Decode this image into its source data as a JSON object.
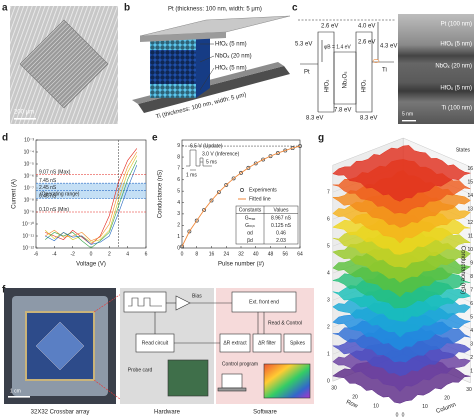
{
  "panel_labels": [
    "a",
    "b",
    "c",
    "d",
    "e",
    "f",
    "g"
  ],
  "a": {
    "scale_bar": "200 μm"
  },
  "b": {
    "layers": [
      "Pt (thickness: 100 nm, width: 5 μm)",
      "HfOₓ (5 nm)",
      "NbOₓ (20 nm)",
      "HfOₓ (5 nm)",
      "Ti (thickness: 100 nm, width: 5 μm)"
    ]
  },
  "c": {
    "band_labels": [
      "2.6 eV",
      "4.0 eV",
      "5.3 eV",
      "φB = 1.4 eV",
      "2.6 eV",
      "4.3 eV",
      "8.3 eV",
      "7.8 eV",
      "8.3 eV",
      "Pt",
      "Ti",
      "HfO₂",
      "Nb₂O₅",
      "HfO₂"
    ],
    "tem_labels": [
      "Pt (100 nm)",
      "HfOₓ (5 nm)",
      "NbOₓ (20 nm)",
      "HfOₓ (5 nm)",
      "Ti (100 nm)"
    ],
    "scale_bar": "5 nm"
  },
  "chart_data": [
    {
      "type": "line",
      "xlabel": "Voltage (V)",
      "ylabel": "Current (A)",
      "log_y": true,
      "x": [
        -5,
        -4,
        -3,
        -2,
        -1,
        0,
        1,
        2,
        3,
        4,
        5
      ],
      "series": [
        {
          "color": "#e2231a",
          "values": [
            2e-11,
            1e-11,
            5e-12,
            3e-11,
            8e-12,
            2e-12,
            1e-11,
            5e-10,
            3e-07,
            2e-05,
            0.0002
          ]
        },
        {
          "color": "#f28c28",
          "values": [
            1e-11,
            3e-11,
            8e-12,
            1e-11,
            2e-11,
            4e-12,
            8e-12,
            1e-10,
            5e-08,
            6e-06,
            0.0001
          ]
        },
        {
          "color": "#d9c21a",
          "values": [
            3e-11,
            6e-12,
            2e-11,
            5e-12,
            1e-11,
            3e-12,
            5e-12,
            3e-11,
            1e-08,
            2e-06,
            5e-05
          ]
        },
        {
          "color": "#3aa64a",
          "values": [
            5e-12,
            2e-11,
            1e-11,
            2e-11,
            4e-12,
            1e-12,
            4e-12,
            2e-11,
            3e-09,
            5e-07,
            2e-05
          ]
        },
        {
          "color": "#2b6cc4",
          "values": [
            1e-11,
            4e-12,
            2e-11,
            8e-12,
            1e-11,
            2e-12,
            3e-12,
            1e-11,
            8e-10,
            1e-07,
            8e-06
          ]
        }
      ],
      "xlim": [
        -6,
        6
      ],
      "xticks": [
        -6,
        -4,
        -2,
        0,
        2,
        4,
        6
      ],
      "ylim": [
        1e-12,
        0.001
      ],
      "yticks": [
        {
          "value": 1e-12,
          "label": "10⁻¹²"
        },
        {
          "value": 1e-11,
          "label": "10⁻¹¹"
        },
        {
          "value": 1e-10,
          "label": "10⁻¹⁰"
        },
        {
          "value": 1e-09,
          "label": "10⁻⁹"
        },
        {
          "value": 1e-08,
          "label": "10⁻⁸"
        },
        {
          "value": 1e-07,
          "label": "10⁻⁷"
        },
        {
          "value": 1e-06,
          "label": "10⁻⁶"
        },
        {
          "value": 1e-05,
          "label": "10⁻⁵"
        },
        {
          "value": 0.0001,
          "label": "10⁻⁴"
        },
        {
          "value": 0.001,
          "label": "10⁻³"
        }
      ],
      "levels": [
        {
          "label": "9.07 nS (Max)",
          "current": 1.3e-06,
          "color": "#e2231a"
        },
        {
          "label": "7.45 nS",
          "current": 2.5e-07,
          "color": "#2b6cc4"
        },
        {
          "label": "2.45 nS",
          "current": 6.3e-08,
          "color": "#2b6cc4"
        },
        {
          "label": "0.45 nS",
          "current": 1.3e-08,
          "color": "#2b6cc4"
        },
        {
          "label": "0.10 nS (Min)",
          "current": 1e-09,
          "color": "#e2231a"
        }
      ],
      "range_label": "(Operating range)",
      "read_voltage": 3
    },
    {
      "type": "line",
      "xlabel": "Pulse number (#)",
      "ylabel": "Conductance (nS)",
      "x": [
        0,
        4,
        8,
        12,
        16,
        20,
        24,
        28,
        32,
        36,
        40,
        44,
        48,
        52,
        56,
        60,
        64
      ],
      "series": [
        {
          "name": "Experiments",
          "color": "#444444",
          "marker": true,
          "values": [
            0.13,
            1.46,
            2.41,
            3.35,
            4.18,
            4.91,
            5.55,
            6.12,
            6.61,
            7.05,
            7.44,
            7.78,
            8.08,
            8.35,
            8.58,
            8.79,
            8.97
          ]
        },
        {
          "name": "Fitted line",
          "color": "#f08a3c",
          "marker": false,
          "values": [
            0.125,
            1.46,
            2.41,
            3.35,
            4.18,
            4.91,
            5.55,
            6.12,
            6.61,
            7.05,
            7.44,
            7.78,
            8.08,
            8.35,
            8.58,
            8.79,
            8.97
          ]
        }
      ],
      "xlim": [
        0,
        64
      ],
      "xticks": [
        0,
        8,
        16,
        24,
        32,
        40,
        48,
        56,
        64
      ],
      "ylim": [
        0,
        9.5
      ],
      "yticks": [
        0,
        1,
        2,
        3,
        4,
        5,
        6,
        7,
        8,
        9
      ],
      "max_line": 8.967,
      "inset": [
        "6.5 V (Update)",
        "3.0 V (Inference)",
        "5 ms",
        "1 ms"
      ],
      "table": {
        "header": [
          "Constants",
          "Values"
        ],
        "rows": [
          [
            "Gₘₐₓ",
            "8.967 nS"
          ],
          [
            "Gₘᵢₙ",
            "0.125 nS"
          ],
          [
            "αd",
            "0.46"
          ],
          [
            "βd",
            "2.03"
          ]
        ]
      }
    },
    {
      "type": "surface",
      "zlabel": "Conductance (nS)",
      "xlabel": "Row",
      "ylabel": "Column",
      "legend_title": "States",
      "zlim": [
        0,
        8
      ],
      "zticks": [
        0,
        1,
        2,
        3,
        4,
        5,
        6,
        7
      ],
      "rlim": [
        0,
        32
      ],
      "rowticks": [
        0,
        10,
        20,
        30
      ],
      "colticks": [
        0,
        10,
        20,
        30
      ],
      "series": [
        {
          "name": "1",
          "value": 0.25,
          "color": "#5b2a86"
        },
        {
          "name": "2",
          "value": 0.75,
          "color": "#6a3fa0"
        },
        {
          "name": "3",
          "value": 1.25,
          "color": "#4b4fc4"
        },
        {
          "name": "4",
          "value": 1.75,
          "color": "#2f6fd6"
        },
        {
          "name": "5",
          "value": 2.25,
          "color": "#1f8fe0"
        },
        {
          "name": "6",
          "value": 2.75,
          "color": "#1aa9d6"
        },
        {
          "name": "7",
          "value": 3.25,
          "color": "#19bfb8"
        },
        {
          "name": "8",
          "value": 3.75,
          "color": "#27c07a"
        },
        {
          "name": "9",
          "value": 4.25,
          "color": "#5cc13c"
        },
        {
          "name": "10",
          "value": 4.75,
          "color": "#97c92a"
        },
        {
          "name": "11",
          "value": 5.25,
          "color": "#c9d224"
        },
        {
          "name": "12",
          "value": 5.75,
          "color": "#efd51f"
        },
        {
          "name": "13",
          "value": 6.25,
          "color": "#f5b21c"
        },
        {
          "name": "14",
          "value": 6.75,
          "color": "#f38a1b"
        },
        {
          "name": "15",
          "value": 7.25,
          "color": "#ee5c1d"
        },
        {
          "name": "16",
          "value": 7.75,
          "color": "#e0301e"
        }
      ]
    }
  ],
  "f": {
    "captions": [
      "32X32 Crossbar array",
      "Hardware",
      "Software"
    ],
    "scale_bar": "1 cm",
    "blocks": [
      "Bias",
      "Read circuit",
      "Probe card",
      "Ext. front end",
      "Read & Control",
      "ΔR extract",
      "ΔR filter",
      "Spikes",
      "Control program"
    ]
  }
}
